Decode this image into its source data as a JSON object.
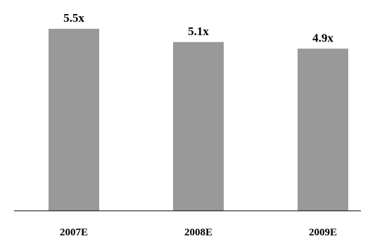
{
  "chart_data": {
    "type": "bar",
    "categories": [
      "2007E",
      "2008E",
      "2009E"
    ],
    "values": [
      5.5,
      5.1,
      4.9
    ],
    "value_labels": [
      "5.5x",
      "5.1x",
      "4.9x"
    ],
    "title": "",
    "xlabel": "",
    "ylabel": "",
    "ylim": [
      0,
      6.5
    ],
    "grid": false,
    "legend": "none",
    "bar_color": "#999999"
  }
}
